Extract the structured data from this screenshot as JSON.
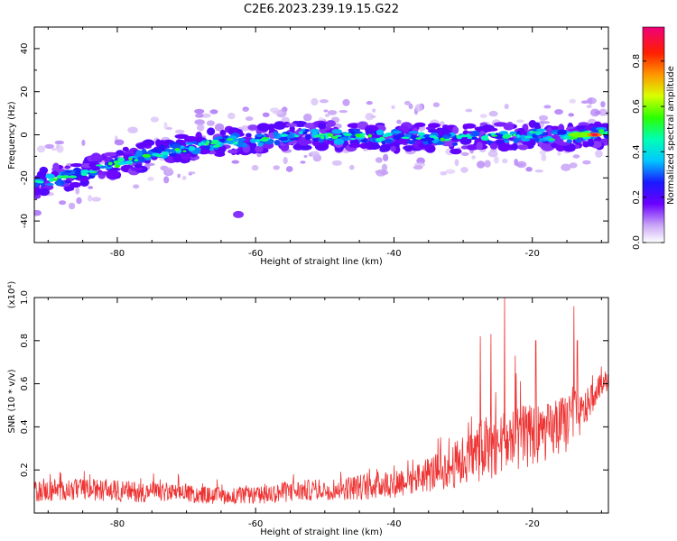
{
  "title": "C2E6.2023.239.19.15.G22",
  "chart_data": [
    {
      "type": "heatmap",
      "xlabel": "Height of straight line (km)",
      "ylabel": "Frequency (Hz)",
      "xlim": [
        -92,
        -9
      ],
      "ylim": [
        -50,
        50
      ],
      "x_ticks": [
        -80,
        -60,
        -40,
        -20
      ],
      "y_ticks": [
        -40,
        -20,
        0,
        20,
        40
      ],
      "colorbar": {
        "label": "Normalized spectral amplitude",
        "range": [
          0,
          0.95
        ],
        "ticks": [
          0.0,
          0.2,
          0.4,
          0.6,
          0.8
        ]
      },
      "ridge": {
        "x": [
          -92,
          -88,
          -84,
          -80,
          -76,
          -72,
          -68,
          -64,
          -60,
          -56,
          -52,
          -48,
          -44,
          -40,
          -36,
          -32,
          -28,
          -24,
          -20,
          -16,
          -12,
          -9
        ],
        "y": [
          -23,
          -20,
          -17,
          -13,
          -10,
          -7,
          -5,
          -3,
          -2,
          -1,
          0,
          -1,
          -1,
          -1,
          -1,
          -2,
          -1,
          -1,
          0,
          -1,
          0,
          1
        ]
      },
      "peak": {
        "x": -11,
        "y": 0,
        "value": 0.95
      }
    },
    {
      "type": "line",
      "xlabel": "Height of straight line (km)",
      "ylabel": "SNR (10 * v/v)",
      "y_multiplier": "(x10⁴)",
      "xlim": [
        -92,
        -9
      ],
      "ylim": [
        0,
        1.0
      ],
      "x_ticks": [
        -80,
        -60,
        -40,
        -20
      ],
      "y_ticks": [
        0.2,
        0.4,
        0.6,
        0.8,
        1.0
      ],
      "color": "#ee3333",
      "envelope": {
        "x": [
          -92,
          -85,
          -78,
          -70,
          -66,
          -60,
          -55,
          -50,
          -45,
          -40,
          -36,
          -32,
          -29,
          -27,
          -25,
          -23,
          -21,
          -19,
          -17,
          -15,
          -14,
          -13,
          -12,
          -11,
          -10,
          -9
        ],
        "base": [
          0.1,
          0.11,
          0.1,
          0.09,
          0.08,
          0.08,
          0.1,
          0.11,
          0.12,
          0.14,
          0.17,
          0.21,
          0.26,
          0.3,
          0.32,
          0.33,
          0.35,
          0.37,
          0.38,
          0.42,
          0.47,
          0.45,
          0.5,
          0.55,
          0.6,
          0.62
        ],
        "spread": [
          0.05,
          0.05,
          0.05,
          0.04,
          0.04,
          0.04,
          0.05,
          0.05,
          0.06,
          0.07,
          0.08,
          0.1,
          0.13,
          0.15,
          0.16,
          0.16,
          0.15,
          0.14,
          0.13,
          0.14,
          0.12,
          0.1,
          0.08,
          0.06,
          0.05,
          0.05
        ]
      },
      "spikes": [
        {
          "x": -27.5,
          "y": 0.82
        },
        {
          "x": -26.0,
          "y": 0.83
        },
        {
          "x": -24.0,
          "y": 1.0
        },
        {
          "x": -22.5,
          "y": 0.73
        },
        {
          "x": -19.5,
          "y": 0.8
        },
        {
          "x": -14.0,
          "y": 0.96
        },
        {
          "x": -13.5,
          "y": 0.8
        },
        {
          "x": -10.0,
          "y": 0.68
        }
      ]
    }
  ]
}
